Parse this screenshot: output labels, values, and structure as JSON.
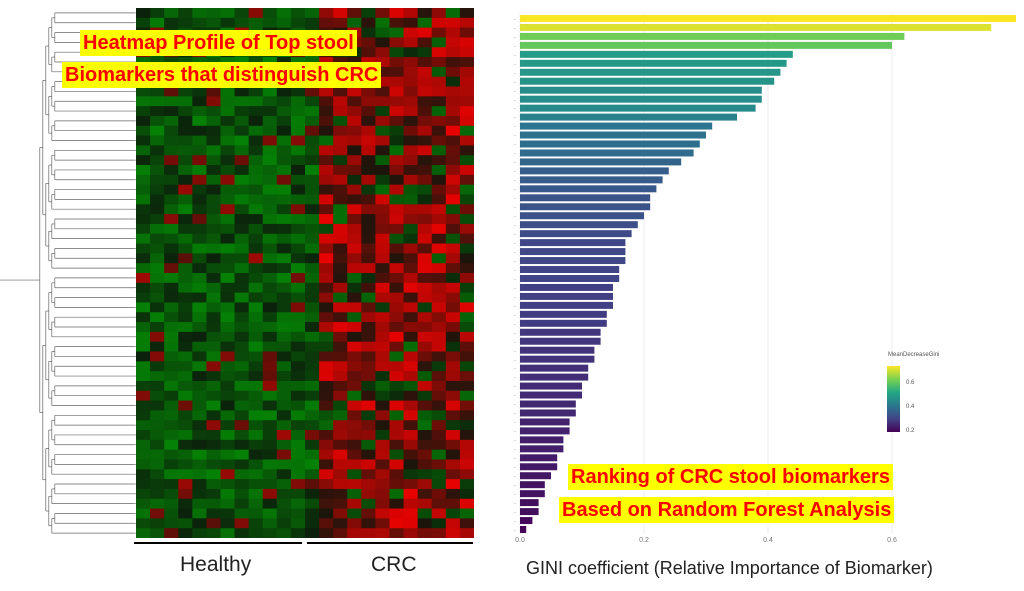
{
  "heatmap": {
    "title_line1": "Heatmap Profile of Top stool",
    "title_line2": "Biomarkers that distinguish CRC",
    "groups": [
      "Healthy",
      "CRC"
    ]
  },
  "ranking": {
    "title_line1": "Ranking of CRC stool biomarkers",
    "title_line2": "Based on Random Forest Analysis"
  },
  "chart_data": [
    {
      "type": "heatmap",
      "title": "Heatmap Profile of Top stool Biomarkers that distinguish CRC",
      "column_groups": [
        "Healthy",
        "CRC"
      ],
      "rows": 54,
      "colors": {
        "low": "#00c000",
        "mid": "#0a150a",
        "high": "#ff0000"
      }
    },
    {
      "type": "bar",
      "orientation": "horizontal",
      "title": "Ranking of CRC stool biomarkers Based on Random Forest Analysis",
      "xlabel": "GINI coefficient (Relative Importance of Biomarker)",
      "xlim": [
        0,
        0.8
      ],
      "xticks": [
        "0.0",
        "0.2",
        "0.4",
        "0.6"
      ],
      "legend_title": "MeanDecreaseGini",
      "legend_ticks": [
        "0.6",
        "0.4",
        "0.2"
      ],
      "values": [
        0.8,
        0.76,
        0.62,
        0.6,
        0.44,
        0.43,
        0.42,
        0.41,
        0.39,
        0.39,
        0.38,
        0.35,
        0.31,
        0.3,
        0.29,
        0.28,
        0.26,
        0.24,
        0.23,
        0.22,
        0.21,
        0.21,
        0.2,
        0.19,
        0.18,
        0.17,
        0.17,
        0.17,
        0.16,
        0.16,
        0.15,
        0.15,
        0.15,
        0.14,
        0.14,
        0.13,
        0.13,
        0.12,
        0.12,
        0.11,
        0.11,
        0.1,
        0.1,
        0.09,
        0.09,
        0.08,
        0.08,
        0.07,
        0.07,
        0.06,
        0.06,
        0.05,
        0.04,
        0.04,
        0.03,
        0.03,
        0.02,
        0.01
      ]
    }
  ]
}
